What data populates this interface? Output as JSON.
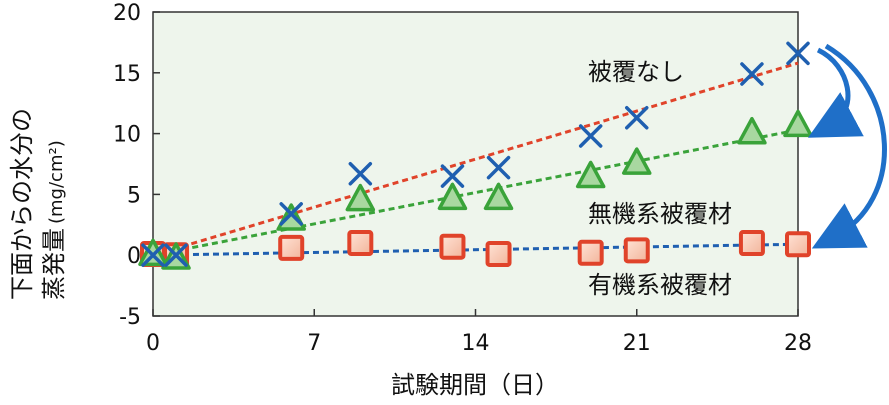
{
  "chart_data": {
    "type": "scatter",
    "xlabel": "試験期間（日）",
    "ylabel_line1": "下面からの水分の",
    "ylabel_line2": "蒸発量",
    "ylabel_unit": "(mg/cm²)",
    "xlim": [
      0,
      28
    ],
    "ylim": [
      -5,
      20
    ],
    "xticks": [
      0,
      7,
      14,
      21,
      28
    ],
    "yticks": [
      -5,
      0,
      5,
      10,
      15,
      20
    ],
    "grid": false,
    "plot_background": "#eef5ec",
    "series": [
      {
        "name": "被覆なし",
        "marker": "cross",
        "color": "#1f5fb0",
        "trend_color": "#e0432a",
        "x": [
          0,
          1,
          6,
          9,
          13,
          15,
          19,
          21,
          26,
          28
        ],
        "y": [
          0,
          0,
          3.4,
          6.7,
          6.5,
          7.2,
          9.8,
          11.3,
          14.9,
          16.6
        ],
        "trend": [
          [
            0,
            0
          ],
          [
            28,
            15.8
          ]
        ]
      },
      {
        "name": "無機系被覆材",
        "marker": "triangle",
        "color": "#3aa33a",
        "trend_color": "#3aa33a",
        "x": [
          0,
          1,
          6,
          9,
          13,
          15,
          19,
          21,
          26,
          28
        ],
        "y": [
          0,
          -0.3,
          2.9,
          4.5,
          4.6,
          4.6,
          6.4,
          7.5,
          10.0,
          10.6
        ],
        "trend": [
          [
            0,
            0
          ],
          [
            28,
            10.3
          ]
        ]
      },
      {
        "name": "有機系被覆材",
        "marker": "square",
        "color": "#e0432a",
        "trend_color": "#1f5fb0",
        "x": [
          0,
          1,
          6,
          9,
          13,
          15,
          19,
          21,
          26,
          28
        ],
        "y": [
          0.1,
          0,
          0.6,
          1.0,
          0.7,
          0.1,
          0.2,
          0.4,
          1.0,
          0.9
        ],
        "trend": [
          [
            0,
            0
          ],
          [
            28,
            0.9
          ]
        ]
      }
    ],
    "arrow_color": "#1f6fc8"
  }
}
